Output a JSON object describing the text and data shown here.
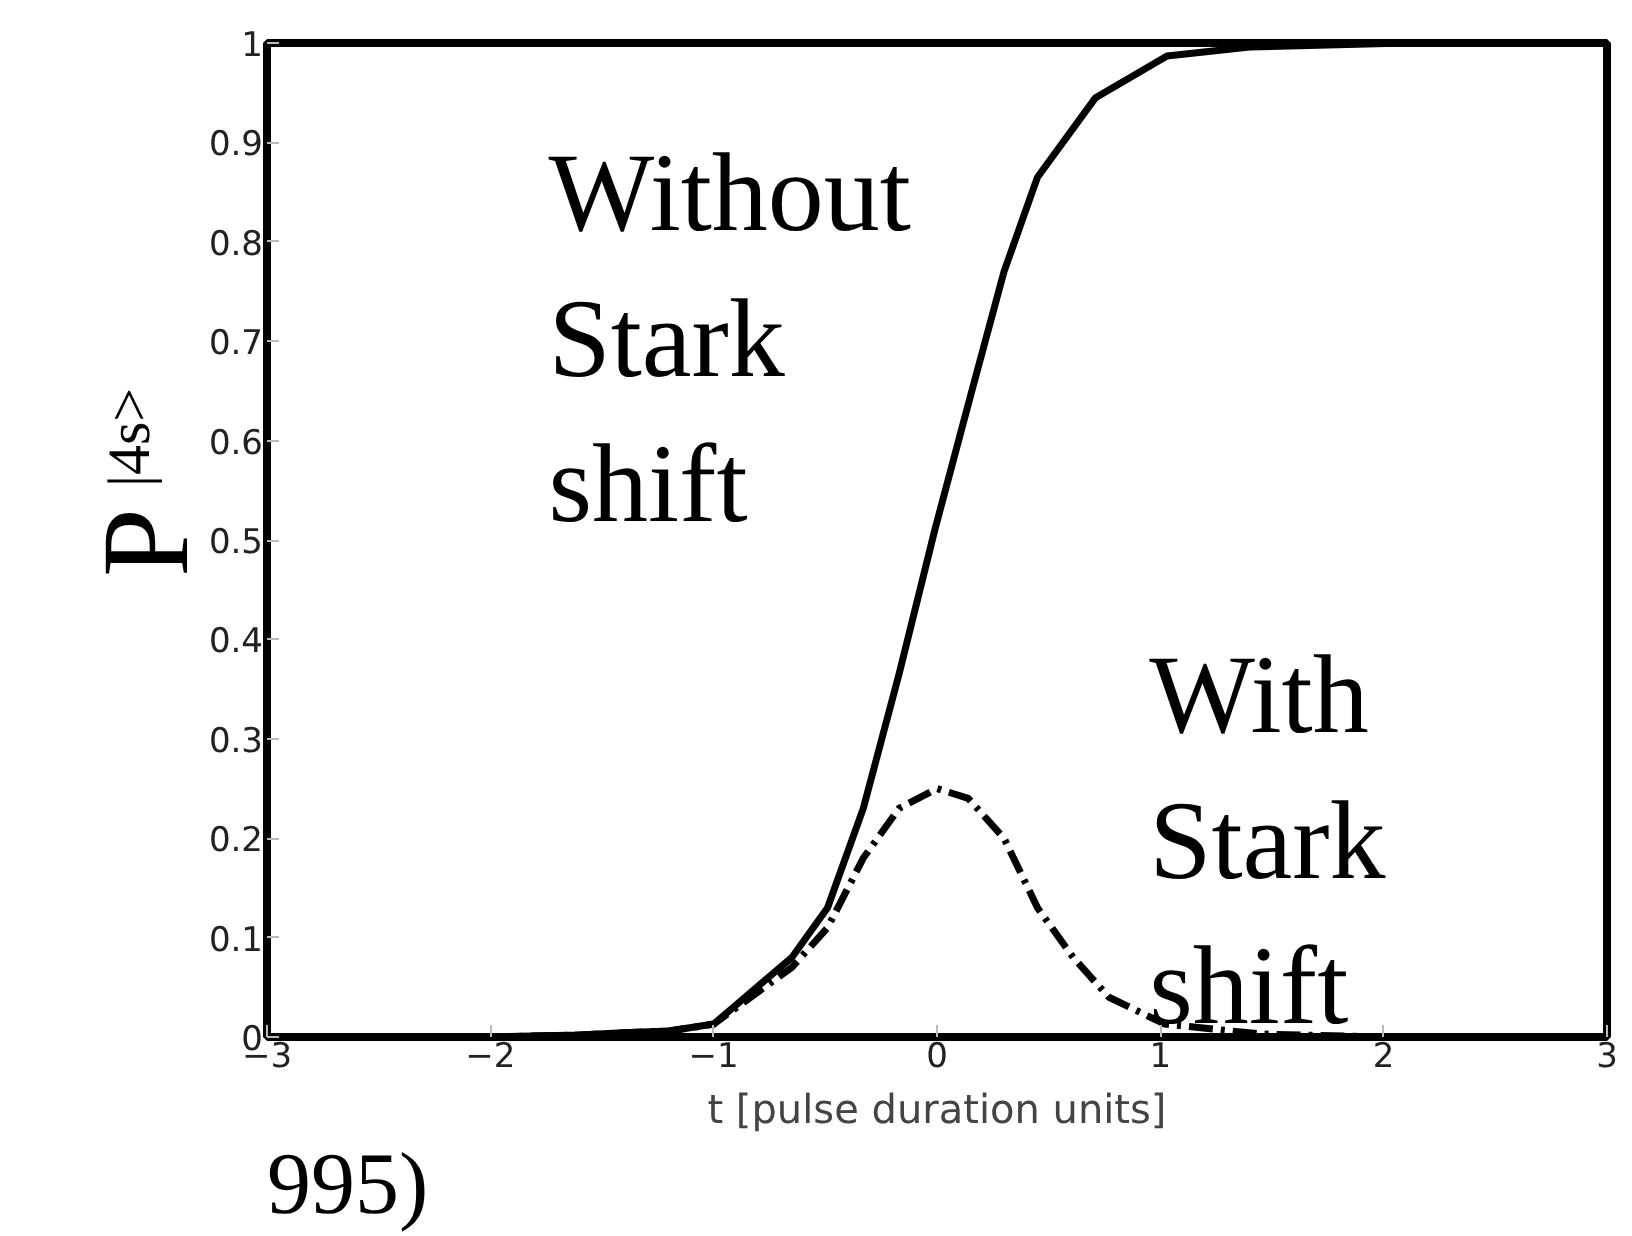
{
  "chart_data": {
    "type": "line",
    "xlabel": "t [pulse duration units]",
    "ylabel": "P$_{|4s>}$",
    "xlim": [
      -3,
      3
    ],
    "xticks": [
      -3,
      -2,
      -1,
      0,
      1,
      2,
      3
    ],
    "ylim": [
      0,
      1
    ],
    "yticks": [
      0,
      0.1,
      0.2,
      0.3,
      0.4,
      0.5,
      0.6,
      0.7,
      0.8,
      0.9,
      1
    ],
    "grid": false,
    "marker": "none",
    "series": [
      {
        "name": "Without Stark shift",
        "color": "#000000",
        "line_style": "solid",
        "x": [
          -3,
          -2,
          -1.6,
          -1.43,
          -1.2,
          -1.0,
          -0.65,
          -0.49,
          -0.33,
          -0.17,
          -0.01,
          0.15,
          0.3,
          0.45,
          0.71,
          1.03,
          1.4,
          2.1,
          3
        ],
        "values": [
          0,
          0,
          0.002,
          0.004,
          0.006,
          0.013,
          0.08,
          0.13,
          0.23,
          0.365,
          0.51,
          0.645,
          0.77,
          0.865,
          0.945,
          0.987,
          0.996,
          1,
          1
        ]
      },
      {
        "name": "With Stark shift",
        "color": "#000000",
        "line_style": "dashed",
        "x": [
          -3,
          -2,
          -1.6,
          -1.43,
          -1.2,
          -1.0,
          -0.65,
          -0.49,
          -0.33,
          -0.17,
          0,
          0.14,
          0.3,
          0.45,
          0.61,
          0.77,
          1.02,
          1.45,
          2,
          3
        ],
        "values": [
          0,
          0,
          0.002,
          0.004,
          0.006,
          0.013,
          0.07,
          0.11,
          0.18,
          0.23,
          0.25,
          0.24,
          0.2,
          0.13,
          0.08,
          0.04,
          0.013,
          0.003,
          0,
          0
        ]
      }
    ],
    "annotations": [
      "995)"
    ]
  }
}
